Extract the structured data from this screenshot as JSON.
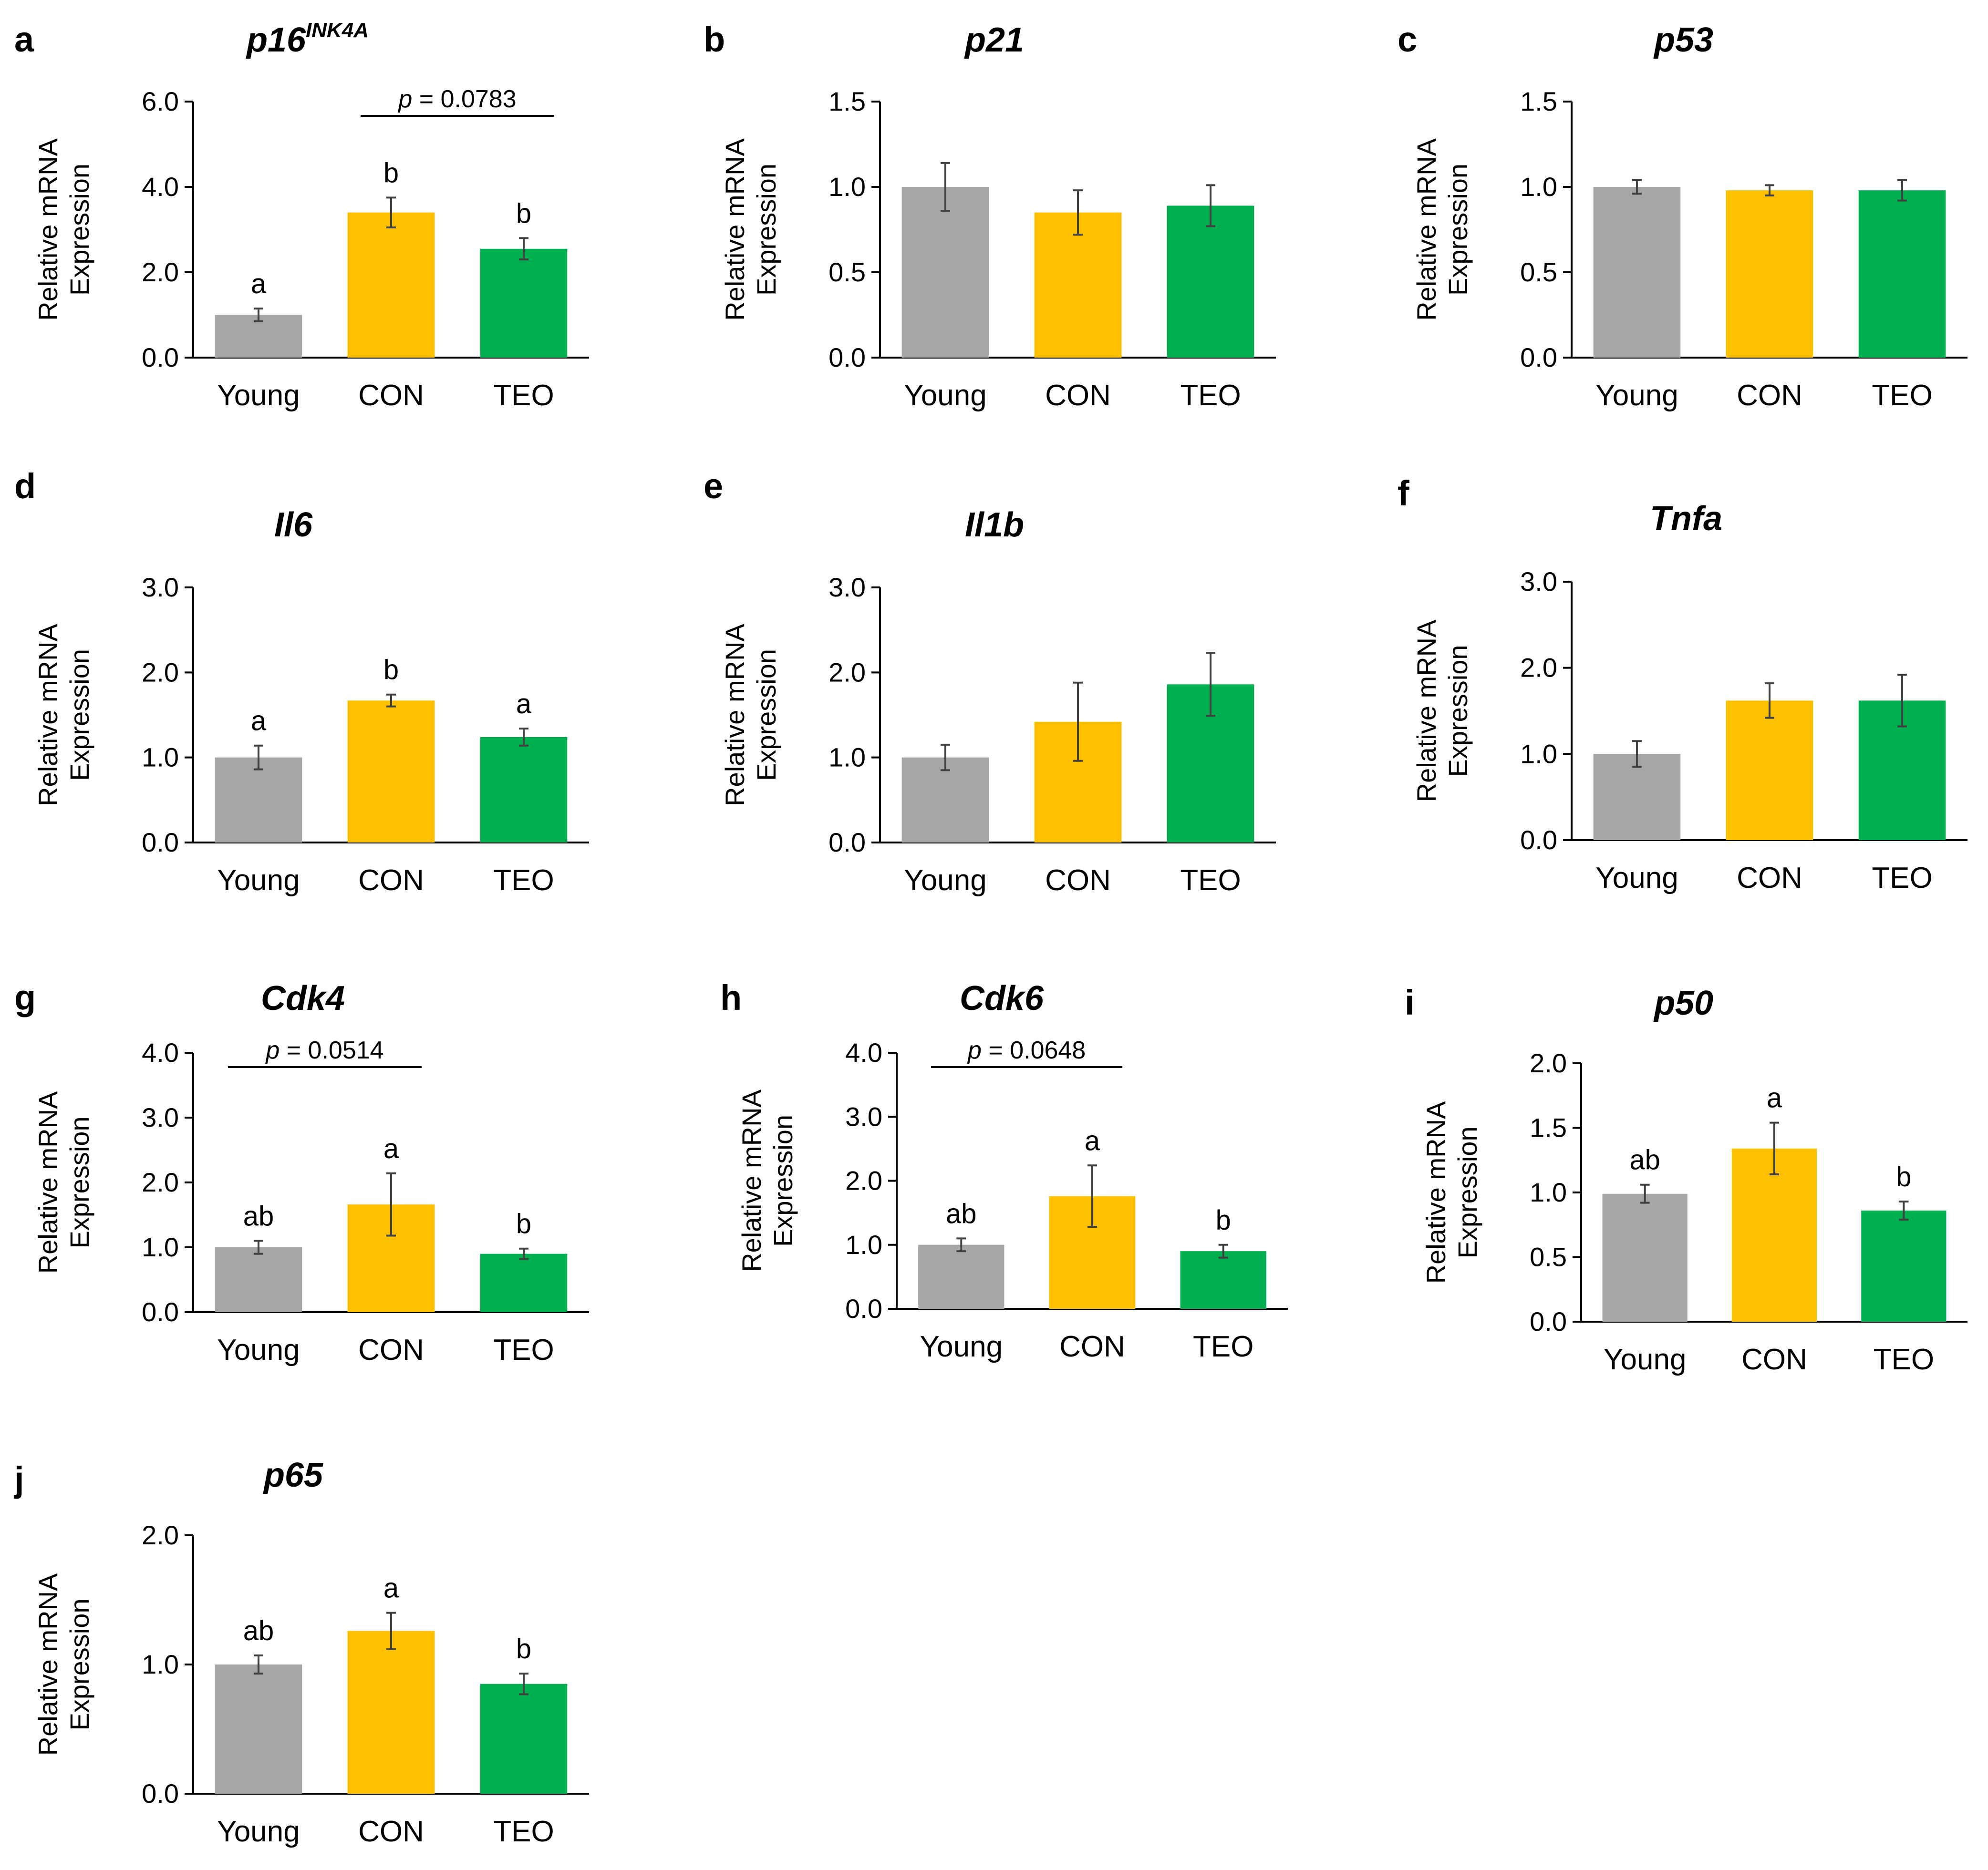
{
  "figure": {
    "colors": {
      "Young": "#a6a6a6",
      "CON": "#ffc000",
      "TEO": "#00b050"
    },
    "axis_label_lines": [
      "Relative mRNA",
      "Expression"
    ]
  },
  "chart_data": [
    {
      "letter": "a",
      "type": "bar",
      "title": "p16",
      "title_sup": "INK4A",
      "categories": [
        "Young",
        "CON",
        "TEO"
      ],
      "values": [
        1.0,
        3.4,
        2.55
      ],
      "errors": [
        0.15,
        0.35,
        0.25
      ],
      "letters": [
        "a",
        "b",
        "b"
      ],
      "ylim": [
        0,
        6
      ],
      "yticks": [
        "0.0",
        "2.0",
        "4.0",
        "6.0"
      ],
      "ylabel": "Relative mRNA Expression",
      "bracket": {
        "from": 1,
        "to": 2,
        "italic": "p",
        "rest": " = 0.0783"
      }
    },
    {
      "letter": "b",
      "type": "bar",
      "title": "p21",
      "categories": [
        "Young",
        "CON",
        "TEO"
      ],
      "values": [
        1.0,
        0.85,
        0.89
      ],
      "errors": [
        0.14,
        0.13,
        0.12
      ],
      "letters": [
        "",
        "",
        ""
      ],
      "ylim": [
        0,
        1.5
      ],
      "yticks": [
        "0.0",
        "0.5",
        "1.0",
        "1.5"
      ],
      "ylabel": "Relative mRNA Expression"
    },
    {
      "letter": "c",
      "type": "bar",
      "title": "p53",
      "categories": [
        "Young",
        "CON",
        "TEO"
      ],
      "values": [
        1.0,
        0.98,
        0.98
      ],
      "errors": [
        0.04,
        0.03,
        0.06
      ],
      "letters": [
        "",
        "",
        ""
      ],
      "ylim": [
        0,
        1.5
      ],
      "yticks": [
        "0.0",
        "0.5",
        "1.0",
        "1.5"
      ],
      "ylabel": "Relative mRNA Expression"
    },
    {
      "letter": "d",
      "type": "bar",
      "title": "Il6",
      "categories": [
        "Young",
        "CON",
        "TEO"
      ],
      "values": [
        1.0,
        1.67,
        1.24
      ],
      "errors": [
        0.14,
        0.07,
        0.1
      ],
      "letters": [
        "a",
        "b",
        "a"
      ],
      "ylim": [
        0,
        3
      ],
      "yticks": [
        "0.0",
        "1.0",
        "2.0",
        "3.0"
      ],
      "ylabel": "Relative mRNA Expression"
    },
    {
      "letter": "e",
      "type": "bar",
      "title": "Il1b",
      "categories": [
        "Young",
        "CON",
        "TEO"
      ],
      "values": [
        1.0,
        1.42,
        1.86
      ],
      "errors": [
        0.15,
        0.46,
        0.37
      ],
      "letters": [
        "",
        "",
        ""
      ],
      "ylim": [
        0,
        3
      ],
      "yticks": [
        "0.0",
        "1.0",
        "2.0",
        "3.0"
      ],
      "ylabel": "Relative mRNA Expression"
    },
    {
      "letter": "f",
      "type": "bar",
      "title": "Tnfa",
      "categories": [
        "Young",
        "CON",
        "TEO"
      ],
      "values": [
        1.0,
        1.62,
        1.62
      ],
      "errors": [
        0.15,
        0.2,
        0.3
      ],
      "letters": [
        "",
        "",
        ""
      ],
      "ylim": [
        0,
        3
      ],
      "yticks": [
        "0.0",
        "1.0",
        "2.0",
        "3.0"
      ],
      "ylabel": "Relative mRNA Expression"
    },
    {
      "letter": "g",
      "type": "bar",
      "title": "Cdk4",
      "categories": [
        "Young",
        "CON",
        "TEO"
      ],
      "values": [
        1.0,
        1.66,
        0.9
      ],
      "errors": [
        0.1,
        0.48,
        0.08
      ],
      "letters": [
        "ab",
        "a",
        "b"
      ],
      "ylim": [
        0,
        4
      ],
      "yticks": [
        "0.0",
        "1.0",
        "2.0",
        "3.0",
        "4.0"
      ],
      "ylabel": "Relative mRNA Expression",
      "bracket": {
        "from": 0,
        "to": 1,
        "italic": "p",
        "rest": " = 0.0514"
      }
    },
    {
      "letter": "h",
      "type": "bar",
      "title": "Cdk6",
      "categories": [
        "Young",
        "CON",
        "TEO"
      ],
      "values": [
        1.0,
        1.76,
        0.9
      ],
      "errors": [
        0.1,
        0.48,
        0.1
      ],
      "letters": [
        "ab",
        "a",
        "b"
      ],
      "ylim": [
        0,
        4
      ],
      "yticks": [
        "0.0",
        "1.0",
        "2.0",
        "3.0",
        "4.0"
      ],
      "ylabel": "Relative mRNA Expression",
      "bracket": {
        "from": 0,
        "to": 1,
        "italic": "p",
        "rest": " = 0.0648"
      }
    },
    {
      "letter": "i",
      "type": "bar",
      "title": "p50",
      "categories": [
        "Young",
        "CON",
        "TEO"
      ],
      "values": [
        0.99,
        1.34,
        0.86
      ],
      "errors": [
        0.07,
        0.2,
        0.07
      ],
      "letters": [
        "ab",
        "a",
        "b"
      ],
      "ylim": [
        0,
        2
      ],
      "yticks": [
        "0.0",
        "0.5",
        "1.0",
        "1.5",
        "2.0"
      ],
      "ylabel": "Relative mRNA Expression"
    },
    {
      "letter": "j",
      "type": "bar",
      "title": "p65",
      "categories": [
        "Young",
        "CON",
        "TEO"
      ],
      "values": [
        1.0,
        1.26,
        0.85
      ],
      "errors": [
        0.07,
        0.14,
        0.08
      ],
      "letters": [
        "ab",
        "a",
        "b"
      ],
      "ylim": [
        0,
        2
      ],
      "yticks": [
        "0.0",
        "1.0",
        "2.0"
      ],
      "ylabel": "Relative mRNA Expression"
    }
  ]
}
